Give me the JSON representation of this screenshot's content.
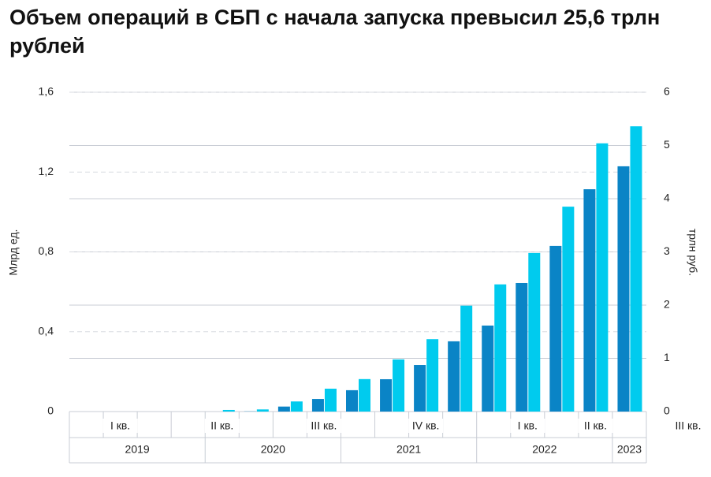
{
  "chart_data": {
    "type": "bar",
    "title": "Объем операций в СБП с начала запуска превысил 25,6 трлн рублей",
    "y_label": "Млрд ед.",
    "y2_label": "трлн руб.",
    "categories": [
      null,
      "I кв.",
      null,
      null,
      "II кв.",
      null,
      null,
      "III кв.",
      null,
      null,
      "IV кв.",
      null,
      null,
      "I кв.",
      null,
      "II кв.",
      null
    ],
    "annotations": [
      "III кв."
    ],
    "years": [
      "2019",
      "2020",
      "2021",
      "2022",
      "2023"
    ],
    "series": [
      {
        "color": "#0a84c6",
        "values": [
          0,
          0,
          0,
          0,
          0,
          0.001,
          0.025,
          0.063,
          0.107,
          0.162,
          0.233,
          0.352,
          0.431,
          0.644,
          0.83,
          1.114,
          1.229
        ]
      },
      {
        "color": "#00cbee",
        "axis": "y2",
        "values": [
          0,
          0,
          0,
          0,
          0.03,
          0.04,
          0.19,
          0.43,
          0.61,
          0.98,
          1.36,
          1.99,
          2.39,
          2.98,
          3.85,
          5.04,
          5.36
        ]
      }
    ],
    "ylim": [
      0,
      1.6
    ],
    "yticks": [
      {
        "value": 0,
        "label": "0"
      },
      {
        "value": 0.4,
        "label": "0,4"
      },
      {
        "value": 0.8,
        "label": "0,8"
      },
      {
        "value": 1.2,
        "label": "1,2"
      },
      {
        "value": 1.6,
        "label": "1,6"
      }
    ],
    "y2lim": [
      0,
      6
    ],
    "y2ticks": [
      0,
      1,
      2,
      3,
      4,
      5,
      6
    ],
    "grid": true
  }
}
